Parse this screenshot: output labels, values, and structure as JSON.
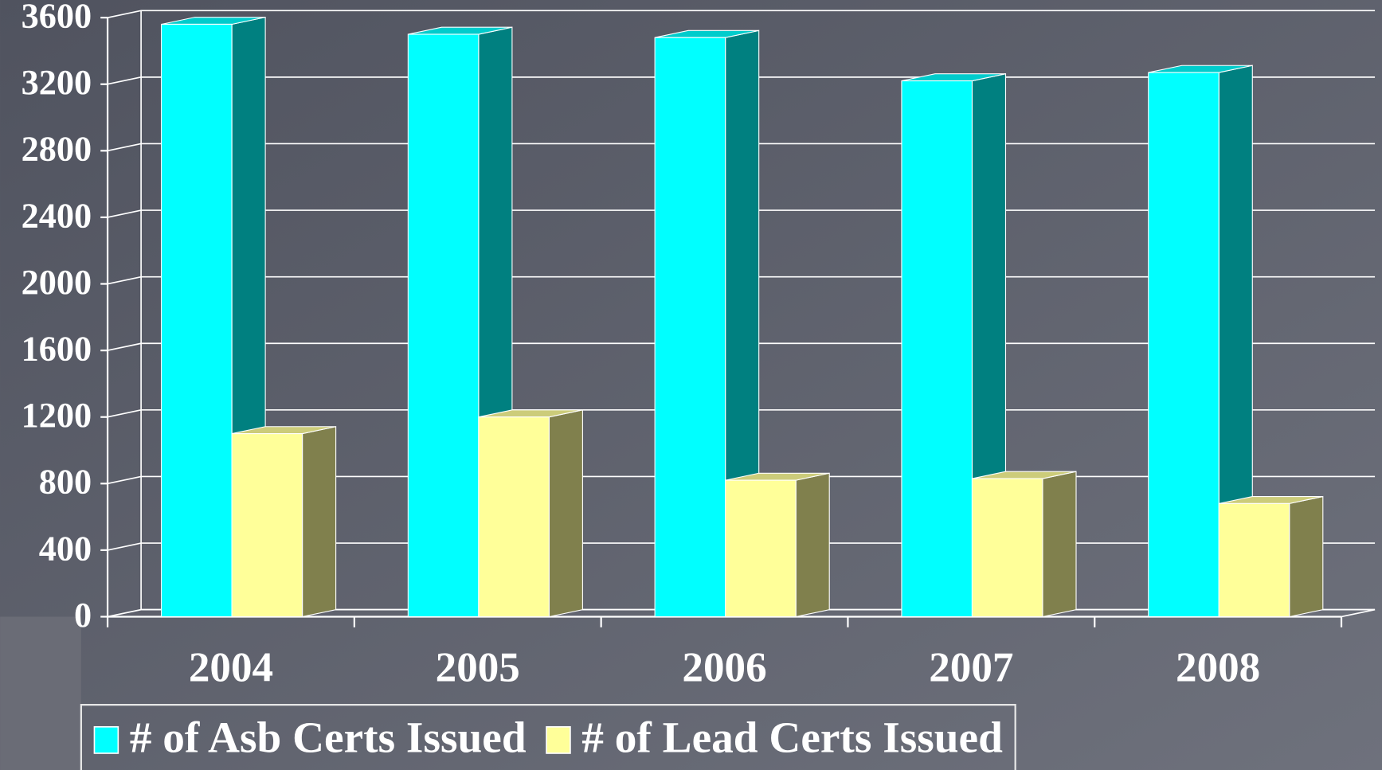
{
  "chart_data": {
    "type": "bar3d",
    "categories": [
      "2004",
      "2005",
      "2006",
      "2007",
      "2008"
    ],
    "series": [
      {
        "name": "# of Asb Certs Issued",
        "color": "#00ffff",
        "values": [
          3560,
          3500,
          3480,
          3220,
          3270
        ]
      },
      {
        "name": "# of Lead Certs Issued",
        "color": "#ffff99",
        "values": [
          1100,
          1200,
          820,
          830,
          680
        ]
      }
    ],
    "ylim": [
      0,
      3600
    ],
    "yticks": [
      0,
      400,
      800,
      1200,
      1600,
      2000,
      2400,
      2800,
      3200,
      3600
    ],
    "grid": true
  }
}
